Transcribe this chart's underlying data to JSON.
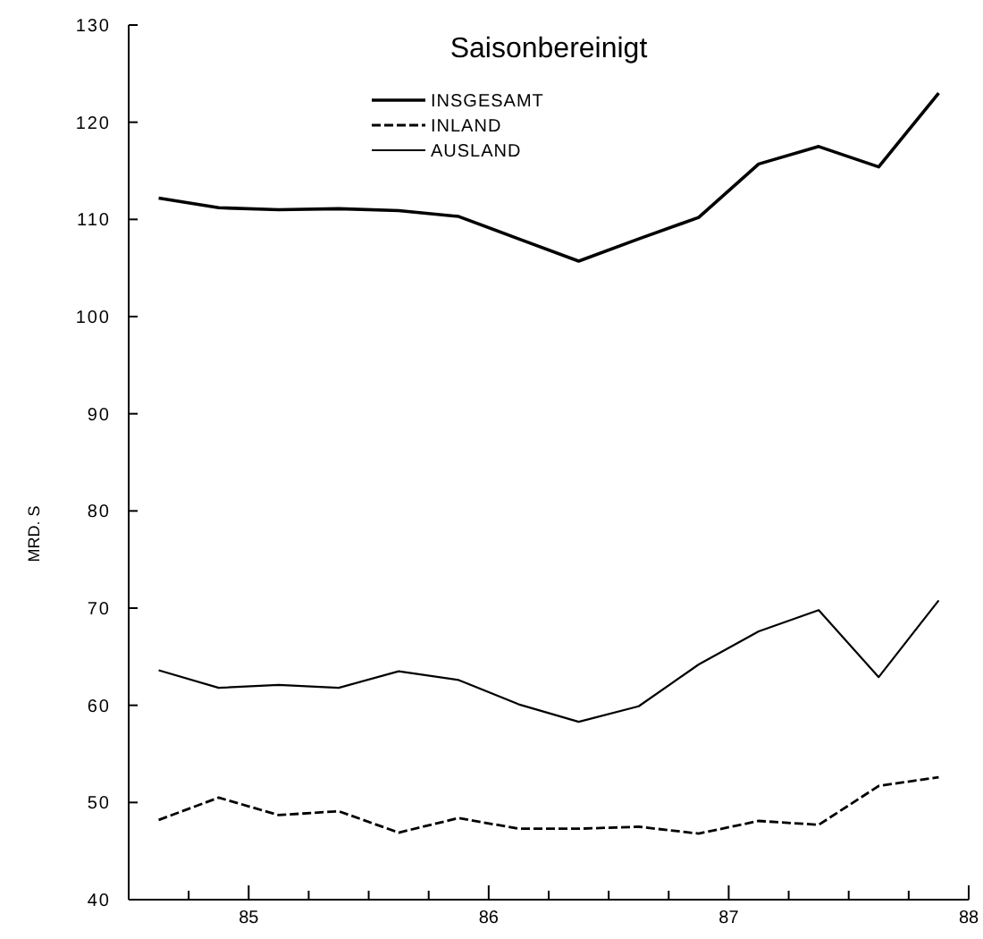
{
  "chart_data": {
    "type": "line",
    "subtitle": "Saisonbereinigt",
    "ylabel": "MRD. S",
    "x": [
      84.625,
      84.875,
      85.125,
      85.375,
      85.625,
      85.875,
      86.125,
      86.375,
      86.625,
      86.875,
      87.125,
      87.375,
      87.625,
      87.875
    ],
    "series": [
      {
        "name": "INSGESAMT",
        "color": "#000000",
        "line_style": "solid",
        "values": [
          112.2,
          111.2,
          111.0,
          111.1,
          110.9,
          110.3,
          108.0,
          105.7,
          108.0,
          110.2,
          115.7,
          117.5,
          115.4,
          123.0
        ]
      },
      {
        "name": "INLAND",
        "color": "#000000",
        "line_style": "dashed",
        "values": [
          48.2,
          50.5,
          48.7,
          49.1,
          46.9,
          48.4,
          47.3,
          47.3,
          47.5,
          46.8,
          48.1,
          47.7,
          51.7,
          52.6
        ]
      },
      {
        "name": "AUSLAND",
        "color": "#000000",
        "line_style": "solid",
        "values": [
          63.6,
          61.8,
          62.1,
          61.8,
          63.5,
          62.6,
          60.1,
          58.3,
          59.9,
          64.2,
          67.6,
          69.8,
          62.9,
          70.8
        ]
      }
    ],
    "xlim": [
      84.5,
      88.0
    ],
    "xticks": [
      {
        "value": 84.75,
        "label": null
      },
      85,
      {
        "value": 85.25,
        "label": null
      },
      {
        "value": 85.5,
        "label": null
      },
      {
        "value": 85.75,
        "label": null
      },
      86,
      {
        "value": 86.25,
        "label": null
      },
      {
        "value": 86.5,
        "label": null
      },
      {
        "value": 86.75,
        "label": null
      },
      87,
      {
        "value": 87.25,
        "label": null
      },
      {
        "value": 87.5,
        "label": null
      },
      {
        "value": 87.75,
        "label": null
      },
      88
    ],
    "ylim": [
      40,
      130
    ],
    "yticks": [
      40,
      50,
      60,
      70,
      80,
      90,
      100,
      110,
      120,
      130
    ],
    "grid": false,
    "legend": "top",
    "marker": "none"
  }
}
